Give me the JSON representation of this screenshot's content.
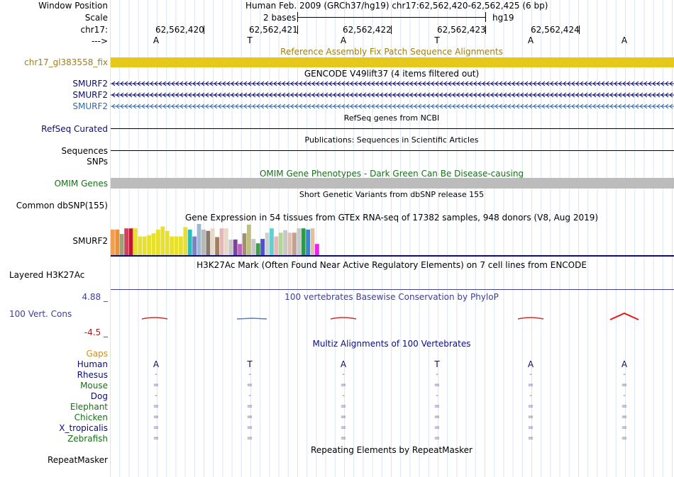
{
  "header": {
    "window_position_label": "Window Position",
    "window_position_value": "Human Feb. 2009 (GRCh37/hg19)   chr17:62,562,420-62,562,425 (6 bp)",
    "scale_label": "Scale",
    "scale_value": "2 bases",
    "scale_db": "hg19",
    "chrom_label": "chr17:",
    "positions": [
      "62,562,420",
      "62,562,421",
      "62,562,422",
      "62,562,423",
      "62,562,424"
    ],
    "strand_label": "--->"
  },
  "bases": [
    "A",
    "T",
    "A",
    "T",
    "A",
    "A"
  ],
  "tracks": {
    "fix_patch": {
      "title": "Reference Assembly Fix Patch Sequence Alignments",
      "label": "chr17_gl383558_fix",
      "color": "#e6c81a",
      "label_color": "#a08010"
    },
    "gencode": {
      "title": "GENCODE V49lift37 (4 items filtered out)",
      "items": [
        "SMURF2",
        "SMURF2",
        "SMURF2"
      ],
      "colors": [
        "#0c0c78",
        "#0c0c78",
        "#2f6ba8"
      ]
    },
    "refseq": {
      "title": "RefSeq genes from NCBI",
      "label": "RefSeq Curated"
    },
    "publications": {
      "title": "Publications: Sequences in Scientific Articles",
      "label": "Sequences"
    },
    "snps_label": "SNPs",
    "omim": {
      "title": "OMIM Gene Phenotypes - Dark Green Can Be Disease-causing",
      "label": "OMIM Genes",
      "color": "#1a6e1a"
    },
    "dbsnp": {
      "title": "Short Genetic Variants from dbSNP release 155",
      "label": "Common dbSNP(155)"
    },
    "gtex": {
      "title": "Gene Expression in 54 tissues from GTEx RNA-seq of 17382 samples, 948 donors (V8, Aug 2019)",
      "label": "SMURF2"
    },
    "h3k27ac": {
      "title": "H3K27Ac Mark (Often Found Near Active Regulatory Elements) on 7 cell lines from ENCODE",
      "label": "Layered H3K27Ac"
    },
    "conservation": {
      "title": "100 vertebrates Basewise Conservation by PhyloP",
      "label": "100 Vert. Cons",
      "max": "4.88 _",
      "min": "-4.5 _",
      "color": "#404090"
    },
    "multiz": {
      "title": "Multiz Alignments of 100 Vertebrates",
      "gaps_label": "Gaps",
      "species": [
        {
          "name": "Human",
          "color": "#0c0c78",
          "row": [
            "A",
            "T",
            "A",
            "T",
            "A",
            "A"
          ]
        },
        {
          "name": "Rhesus",
          "color": "#0c0c78",
          "row": [
            "-",
            "-",
            "-",
            "-",
            "-",
            "-"
          ]
        },
        {
          "name": "Mouse",
          "color": "#1a6e1a",
          "row": [
            "=",
            "=",
            "=",
            "=",
            "=",
            "="
          ]
        },
        {
          "name": "Dog",
          "color": "#0c0c78",
          "row": [
            "-",
            "-",
            "-",
            "-",
            "-",
            "-"
          ]
        },
        {
          "name": "Elephant",
          "color": "#1a6e1a",
          "row": [
            "=",
            "=",
            "=",
            "=",
            "=",
            "="
          ]
        },
        {
          "name": "Chicken",
          "color": "#1a6e1a",
          "row": [
            "=",
            "=",
            "=",
            "=",
            "=",
            "="
          ]
        },
        {
          "name": "X_tropicalis",
          "color": "#0c0c78",
          "row": [
            "=",
            "=",
            "=",
            "=",
            "=",
            "="
          ]
        },
        {
          "name": "Zebrafish",
          "color": "#1a6e1a",
          "row": [
            "=",
            "=",
            "=",
            "=",
            "=",
            "="
          ]
        }
      ]
    },
    "repeatmasker": {
      "title": "Repeating Elements by RepeatMasker",
      "label": "RepeatMasker"
    }
  },
  "gtex_colors": [
    "#f0a050",
    "#f09030",
    "#a0a070",
    "#d04060",
    "#c01830",
    "#e8e030",
    "#e8e030",
    "#e8e030",
    "#e8e030",
    "#e8e030",
    "#e8e030",
    "#e8e030",
    "#e8e030",
    "#e8e030",
    "#e8e030",
    "#e8e030",
    "#e8e030",
    "#20c0c0",
    "#8080c0",
    "#a0b8d0",
    "#b8b8b8",
    "#8a7a6a",
    "#e8d8c8",
    "#a08060",
    "#e0b8b8",
    "#e8d8c8",
    "#c8c8c8",
    "#8040a0",
    "#c060c0",
    "#a09070",
    "#c0c080",
    "#c8c8c8",
    "#40a040",
    "#5050d0",
    "#d0d0d0",
    "#60d0d0",
    "#e8b8b8",
    "#b0d890",
    "#c8c8c8",
    "#e0c0b0",
    "#c0a090",
    "#c8c8c8",
    "#20a040",
    "#4080d0",
    "#e0c0a0",
    "#f020f0"
  ],
  "gtex_values": [
    0.82,
    0.82,
    0.68,
    0.86,
    0.86,
    0.86,
    0.6,
    0.6,
    0.64,
    0.7,
    0.82,
    0.92,
    0.78,
    0.6,
    0.6,
    0.6,
    0.9,
    0.82,
    0.6,
    1.0,
    0.82,
    0.78,
    0.86,
    0.58,
    0.86,
    0.86,
    0.5,
    0.5,
    0.36,
    0.7,
    0.98,
    0.52,
    0.38,
    0.52,
    0.72,
    0.86,
    0.6,
    0.72,
    0.8,
    0.72,
    0.72,
    0.86,
    0.86,
    0.82,
    0.86,
    0.36
  ]
}
